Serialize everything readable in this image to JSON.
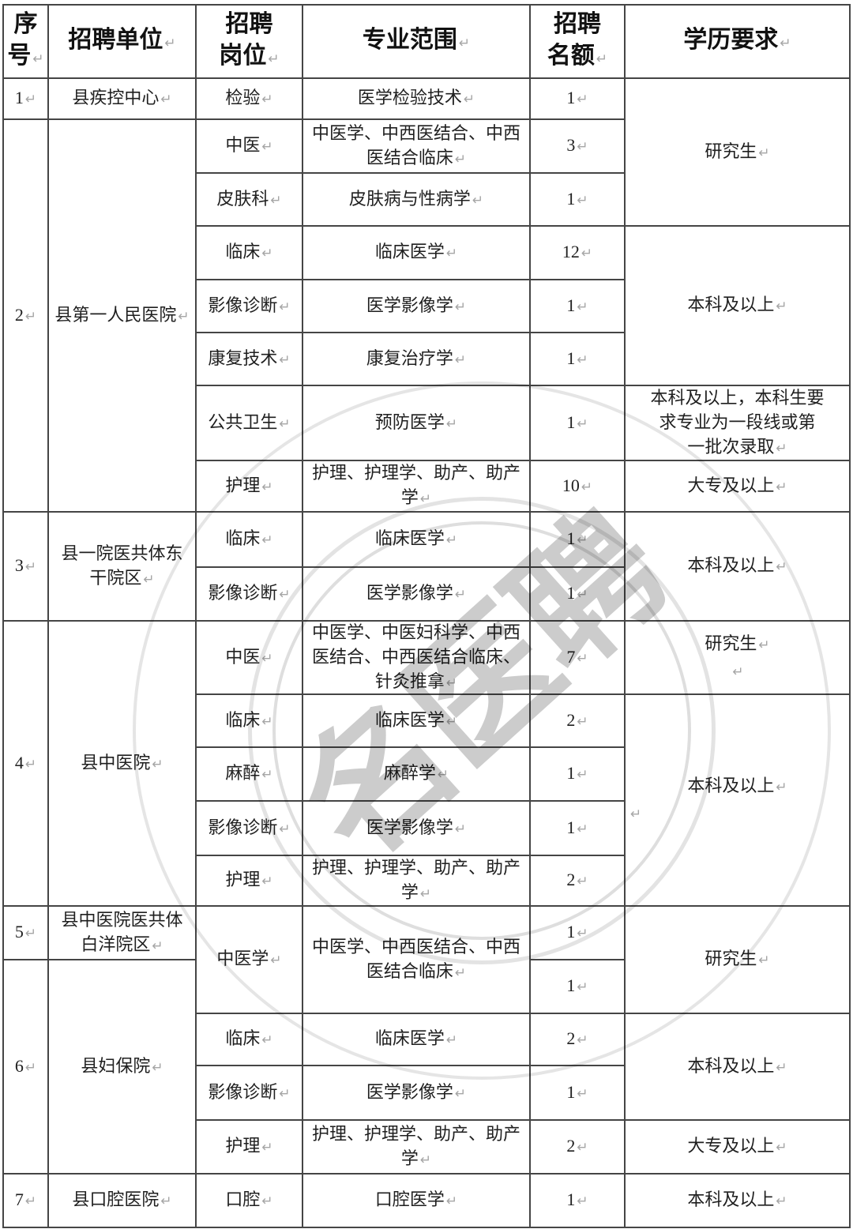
{
  "pilcrow": "↵",
  "watermark": {
    "text": "名医聘"
  },
  "table": {
    "cells": [
      {
        "name": "header-seq",
        "r": 1,
        "c": 1,
        "paras": [
          "序\n号"
        ],
        "header": true
      },
      {
        "name": "header-unit",
        "r": 1,
        "c": 2,
        "paras": [
          "招聘单位"
        ],
        "header": true
      },
      {
        "name": "header-position",
        "r": 1,
        "c": 3,
        "paras": [
          "招聘\n岗位"
        ],
        "header": true
      },
      {
        "name": "header-major",
        "r": 1,
        "c": 4,
        "paras": [
          "专业范围"
        ],
        "header": true
      },
      {
        "name": "header-quota",
        "r": 1,
        "c": 5,
        "paras": [
          "招聘\n名额"
        ],
        "header": true
      },
      {
        "name": "header-education",
        "r": 1,
        "c": 6,
        "paras": [
          "学历要求"
        ],
        "header": true
      },
      {
        "name": "seq-cell",
        "r": 2,
        "c": 1,
        "paras": [
          "1"
        ],
        "thick": true
      },
      {
        "name": "unit-cell",
        "r": 2,
        "c": 2,
        "paras": [
          "县疾控中心"
        ],
        "thick": true
      },
      {
        "name": "position-cell",
        "r": 2,
        "c": 3,
        "paras": [
          "检验"
        ],
        "thick": true
      },
      {
        "name": "major-cell",
        "r": 2,
        "c": 4,
        "paras": [
          "医学检验技术"
        ],
        "thick": true
      },
      {
        "name": "quota-cell",
        "r": 2,
        "c": 5,
        "paras": [
          "1"
        ],
        "thick": true
      },
      {
        "name": "education-cell",
        "r": 2,
        "c": 6,
        "rs": 3,
        "paras": [
          "研究生"
        ],
        "thick": true
      },
      {
        "name": "seq-cell",
        "r": 3,
        "c": 1,
        "rs": 7,
        "paras": [
          "2"
        ],
        "thick": true
      },
      {
        "name": "unit-cell",
        "r": 3,
        "c": 2,
        "rs": 7,
        "paras": [
          "县第一人民医院"
        ],
        "thick": true
      },
      {
        "name": "position-cell",
        "r": 3,
        "c": 3,
        "paras": [
          "中医"
        ],
        "thick": true
      },
      {
        "name": "major-cell",
        "r": 3,
        "c": 4,
        "paras": [
          "中医学、中西医结合、中西\n医结合临床"
        ],
        "thick": true
      },
      {
        "name": "quota-cell",
        "r": 3,
        "c": 5,
        "paras": [
          "3"
        ],
        "thick": true
      },
      {
        "name": "position-cell",
        "r": 4,
        "c": 3,
        "paras": [
          "皮肤科"
        ]
      },
      {
        "name": "major-cell",
        "r": 4,
        "c": 4,
        "paras": [
          "皮肤病与性病学"
        ]
      },
      {
        "name": "quota-cell",
        "r": 4,
        "c": 5,
        "paras": [
          "1"
        ]
      },
      {
        "name": "position-cell",
        "r": 5,
        "c": 3,
        "paras": [
          "临床"
        ]
      },
      {
        "name": "major-cell",
        "r": 5,
        "c": 4,
        "paras": [
          "临床医学"
        ]
      },
      {
        "name": "quota-cell",
        "r": 5,
        "c": 5,
        "paras": [
          "12"
        ]
      },
      {
        "name": "education-cell",
        "r": 5,
        "c": 6,
        "rs": 3,
        "paras": [
          "本科及以上"
        ]
      },
      {
        "name": "position-cell",
        "r": 6,
        "c": 3,
        "paras": [
          "影像诊断"
        ]
      },
      {
        "name": "major-cell",
        "r": 6,
        "c": 4,
        "paras": [
          "医学影像学"
        ]
      },
      {
        "name": "quota-cell",
        "r": 6,
        "c": 5,
        "paras": [
          "1"
        ]
      },
      {
        "name": "position-cell",
        "r": 7,
        "c": 3,
        "paras": [
          "康复技术"
        ]
      },
      {
        "name": "major-cell",
        "r": 7,
        "c": 4,
        "paras": [
          "康复治疗学"
        ]
      },
      {
        "name": "quota-cell",
        "r": 7,
        "c": 5,
        "paras": [
          "1"
        ]
      },
      {
        "name": "position-cell",
        "r": 8,
        "c": 3,
        "paras": [
          "公共卫生"
        ]
      },
      {
        "name": "major-cell",
        "r": 8,
        "c": 4,
        "paras": [
          "预防医学"
        ]
      },
      {
        "name": "quota-cell",
        "r": 8,
        "c": 5,
        "paras": [
          "1"
        ]
      },
      {
        "name": "education-cell",
        "r": 8,
        "c": 6,
        "paras": [
          "本科及以上，本科生要\n求专业为一段线或第\n一批次录取"
        ]
      },
      {
        "name": "position-cell",
        "r": 9,
        "c": 3,
        "paras": [
          "护理"
        ]
      },
      {
        "name": "major-cell",
        "r": 9,
        "c": 4,
        "paras": [
          "护理、护理学、助产、助产\n学"
        ]
      },
      {
        "name": "quota-cell",
        "r": 9,
        "c": 5,
        "paras": [
          "10"
        ]
      },
      {
        "name": "education-cell",
        "r": 9,
        "c": 6,
        "paras": [
          "大专及以上"
        ]
      },
      {
        "name": "seq-cell",
        "r": 10,
        "c": 1,
        "rs": 2,
        "paras": [
          "3"
        ],
        "thick": true
      },
      {
        "name": "unit-cell",
        "r": 10,
        "c": 2,
        "rs": 2,
        "paras": [
          "县一院医共体东\n干院区"
        ],
        "thick": true
      },
      {
        "name": "position-cell",
        "r": 10,
        "c": 3,
        "paras": [
          "临床"
        ],
        "thick": true
      },
      {
        "name": "major-cell",
        "r": 10,
        "c": 4,
        "paras": [
          "临床医学"
        ],
        "thick": true
      },
      {
        "name": "quota-cell",
        "r": 10,
        "c": 5,
        "paras": [
          "1"
        ],
        "thick": true
      },
      {
        "name": "education-cell",
        "r": 10,
        "c": 6,
        "rs": 2,
        "paras": [
          "本科及以上"
        ],
        "thick": true
      },
      {
        "name": "position-cell",
        "r": 11,
        "c": 3,
        "paras": [
          "影像诊断"
        ]
      },
      {
        "name": "major-cell",
        "r": 11,
        "c": 4,
        "paras": [
          "医学影像学"
        ]
      },
      {
        "name": "quota-cell",
        "r": 11,
        "c": 5,
        "paras": [
          "1"
        ]
      },
      {
        "name": "seq-cell",
        "r": 12,
        "c": 1,
        "rs": 5,
        "paras": [
          "4"
        ],
        "thick": true
      },
      {
        "name": "unit-cell",
        "r": 12,
        "c": 2,
        "rs": 5,
        "paras": [
          "县中医院"
        ],
        "thick": true
      },
      {
        "name": "position-cell",
        "r": 12,
        "c": 3,
        "paras": [
          "中医"
        ],
        "thick": true
      },
      {
        "name": "major-cell",
        "r": 12,
        "c": 4,
        "paras": [
          "中医学、中医妇科学、中西\n医结合、中西医结合临床、\n针灸推拿"
        ],
        "thick": true
      },
      {
        "name": "quota-cell",
        "r": 12,
        "c": 5,
        "paras": [
          "7"
        ],
        "thick": true
      },
      {
        "name": "education-cell",
        "r": 12,
        "c": 6,
        "paras": [
          "研究生",
          ""
        ],
        "thick": true
      },
      {
        "name": "position-cell",
        "r": 13,
        "c": 3,
        "paras": [
          "临床"
        ]
      },
      {
        "name": "major-cell",
        "r": 13,
        "c": 4,
        "paras": [
          "临床医学"
        ]
      },
      {
        "name": "quota-cell",
        "r": 13,
        "c": 5,
        "paras": [
          "2"
        ]
      },
      {
        "name": "education-cell",
        "r": 13,
        "c": 6,
        "rs": 4,
        "paras": [
          "本科及以上",
          ""
        ],
        "p2left": true
      },
      {
        "name": "position-cell",
        "r": 14,
        "c": 3,
        "paras": [
          "麻醉"
        ]
      },
      {
        "name": "major-cell",
        "r": 14,
        "c": 4,
        "paras": [
          "麻醉学"
        ]
      },
      {
        "name": "quota-cell",
        "r": 14,
        "c": 5,
        "paras": [
          "1"
        ]
      },
      {
        "name": "position-cell",
        "r": 15,
        "c": 3,
        "paras": [
          "影像诊断"
        ]
      },
      {
        "name": "major-cell",
        "r": 15,
        "c": 4,
        "paras": [
          "医学影像学"
        ]
      },
      {
        "name": "quota-cell",
        "r": 15,
        "c": 5,
        "paras": [
          "1"
        ]
      },
      {
        "name": "position-cell",
        "r": 16,
        "c": 3,
        "paras": [
          "护理"
        ]
      },
      {
        "name": "major-cell",
        "r": 16,
        "c": 4,
        "paras": [
          "护理、护理学、助产、助产\n学"
        ]
      },
      {
        "name": "quota-cell",
        "r": 16,
        "c": 5,
        "paras": [
          "2"
        ]
      },
      {
        "name": "seq-cell",
        "r": 17,
        "c": 1,
        "paras": [
          "5"
        ],
        "thick": true
      },
      {
        "name": "unit-cell",
        "r": 17,
        "c": 2,
        "paras": [
          "县中医院医共体\n白洋院区"
        ],
        "thick": true
      },
      {
        "name": "position-cell",
        "r": 17,
        "c": 3,
        "rs": 2,
        "paras": [
          "中医学"
        ],
        "thick": true
      },
      {
        "name": "major-cell",
        "r": 17,
        "c": 4,
        "rs": 2,
        "paras": [
          "中医学、中西医结合、中西\n医结合临床"
        ],
        "thick": true
      },
      {
        "name": "quota-cell",
        "r": 17,
        "c": 5,
        "paras": [
          "1"
        ],
        "thick": true
      },
      {
        "name": "education-cell",
        "r": 17,
        "c": 6,
        "rs": 2,
        "paras": [
          "研究生"
        ],
        "thick": true
      },
      {
        "name": "seq-cell",
        "r": 18,
        "c": 1,
        "rs": 4,
        "paras": [
          "6"
        ]
      },
      {
        "name": "unit-cell",
        "r": 18,
        "c": 2,
        "rs": 4,
        "paras": [
          "县妇保院"
        ]
      },
      {
        "name": "quota-cell",
        "r": 18,
        "c": 5,
        "paras": [
          "1"
        ]
      },
      {
        "name": "position-cell",
        "r": 19,
        "c": 3,
        "paras": [
          "临床"
        ]
      },
      {
        "name": "major-cell",
        "r": 19,
        "c": 4,
        "paras": [
          "临床医学"
        ]
      },
      {
        "name": "quota-cell",
        "r": 19,
        "c": 5,
        "paras": [
          "2"
        ]
      },
      {
        "name": "education-cell",
        "r": 19,
        "c": 6,
        "rs": 2,
        "paras": [
          "本科及以上"
        ]
      },
      {
        "name": "position-cell",
        "r": 20,
        "c": 3,
        "paras": [
          "影像诊断"
        ]
      },
      {
        "name": "major-cell",
        "r": 20,
        "c": 4,
        "paras": [
          "医学影像学"
        ]
      },
      {
        "name": "quota-cell",
        "r": 20,
        "c": 5,
        "paras": [
          "1"
        ]
      },
      {
        "name": "position-cell",
        "r": 21,
        "c": 3,
        "paras": [
          "护理"
        ]
      },
      {
        "name": "major-cell",
        "r": 21,
        "c": 4,
        "paras": [
          "护理、护理学、助产、助产\n学"
        ]
      },
      {
        "name": "quota-cell",
        "r": 21,
        "c": 5,
        "paras": [
          "2"
        ]
      },
      {
        "name": "education-cell",
        "r": 21,
        "c": 6,
        "paras": [
          "大专及以上"
        ]
      },
      {
        "name": "seq-cell",
        "r": 22,
        "c": 1,
        "paras": [
          "7"
        ],
        "thick": true
      },
      {
        "name": "unit-cell",
        "r": 22,
        "c": 2,
        "paras": [
          "县口腔医院"
        ],
        "thick": true
      },
      {
        "name": "position-cell",
        "r": 22,
        "c": 3,
        "paras": [
          "口腔"
        ],
        "thick": true
      },
      {
        "name": "major-cell",
        "r": 22,
        "c": 4,
        "paras": [
          "口腔医学"
        ],
        "thick": true
      },
      {
        "name": "quota-cell",
        "r": 22,
        "c": 5,
        "paras": [
          "1"
        ],
        "thick": true
      },
      {
        "name": "education-cell",
        "r": 22,
        "c": 6,
        "paras": [
          "本科及以上"
        ],
        "thick": true
      }
    ]
  }
}
